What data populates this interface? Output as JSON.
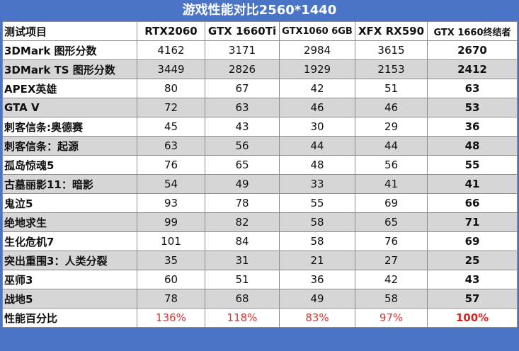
{
  "title": "游戏性能对比2560*1440",
  "chart_data": {
    "type": "table",
    "header": [
      "测试项目",
      "RTX2060",
      "GTX 1660Ti",
      "GTX1060 6GB",
      "XFX RX590",
      "GTX 1660终结者"
    ],
    "rows": [
      {
        "name": "3DMark  图形分数",
        "values": [
          "4162",
          "3171",
          "2984",
          "3615",
          "2670"
        ]
      },
      {
        "name": "3DMark  TS 图形分数",
        "values": [
          "3449",
          "2826",
          "1929",
          "2153",
          "2412"
        ]
      },
      {
        "name": "APEX英雄",
        "values": [
          "80",
          "67",
          "42",
          "51",
          "63"
        ]
      },
      {
        "name": "GTA V",
        "values": [
          "72",
          "63",
          "46",
          "46",
          "53"
        ]
      },
      {
        "name": "刺客信条:奥德赛",
        "values": [
          "45",
          "43",
          "30",
          "29",
          "36"
        ]
      },
      {
        "name": "刺客信条：起源",
        "values": [
          "63",
          "56",
          "44",
          "44",
          "48"
        ]
      },
      {
        "name": "孤岛惊魂5",
        "values": [
          "76",
          "65",
          "48",
          "56",
          "55"
        ]
      },
      {
        "name": "古墓丽影11：暗影",
        "values": [
          "54",
          "49",
          "33",
          "41",
          "41"
        ]
      },
      {
        "name": "鬼泣5",
        "values": [
          "93",
          "78",
          "55",
          "69",
          "66"
        ]
      },
      {
        "name": "绝地求生",
        "values": [
          "99",
          "82",
          "58",
          "65",
          "71"
        ]
      },
      {
        "name": "生化危机7",
        "values": [
          "101",
          "84",
          "58",
          "76",
          "69"
        ]
      },
      {
        "name": "突出重围3：人类分裂",
        "values": [
          "35",
          "31",
          "21",
          "27",
          "25"
        ]
      },
      {
        "name": "巫师3",
        "values": [
          "60",
          "51",
          "36",
          "42",
          "43"
        ]
      },
      {
        "name": "战地5",
        "values": [
          "78",
          "68",
          "49",
          "58",
          "57"
        ]
      },
      {
        "name": "性能百分比",
        "values": [
          "136%",
          "118%",
          "83%",
          "97%",
          "100%"
        ]
      }
    ]
  },
  "colors": {
    "frame": "#4a74c6",
    "stripe": "#d6d6d6",
    "percent_text": "#e03030"
  }
}
